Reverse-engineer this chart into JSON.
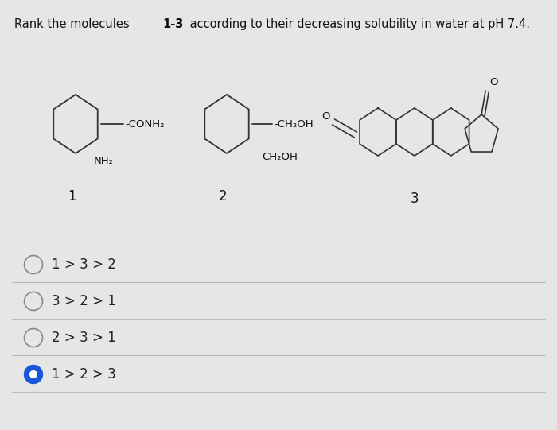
{
  "title_pre": "Rank the molecules ",
  "title_bold": "1-3",
  "title_post": " according to their decreasing solubility in water at pH 7.4.",
  "background_color": "#e6e6e6",
  "options": [
    {
      "text": "1 > 3 > 2",
      "selected": false
    },
    {
      "text": "3 > 2 > 1",
      "selected": false
    },
    {
      "text": "2 > 3 > 1",
      "selected": false
    },
    {
      "text": "1 > 2 > 3",
      "selected": true
    }
  ],
  "molecule_labels": [
    "1",
    "2",
    "3"
  ],
  "mol1_sub1": "-CONH₂",
  "mol1_sub2": "NH₂",
  "mol2_sub1": "-CH₂OH",
  "mol2_sub2": "CH₂OH",
  "radio_color_unselected": "#888888",
  "radio_color_selected": "#1a56db",
  "option_text_color": "#222222",
  "divider_color": "#bbbbbb",
  "line_color": "#333333"
}
